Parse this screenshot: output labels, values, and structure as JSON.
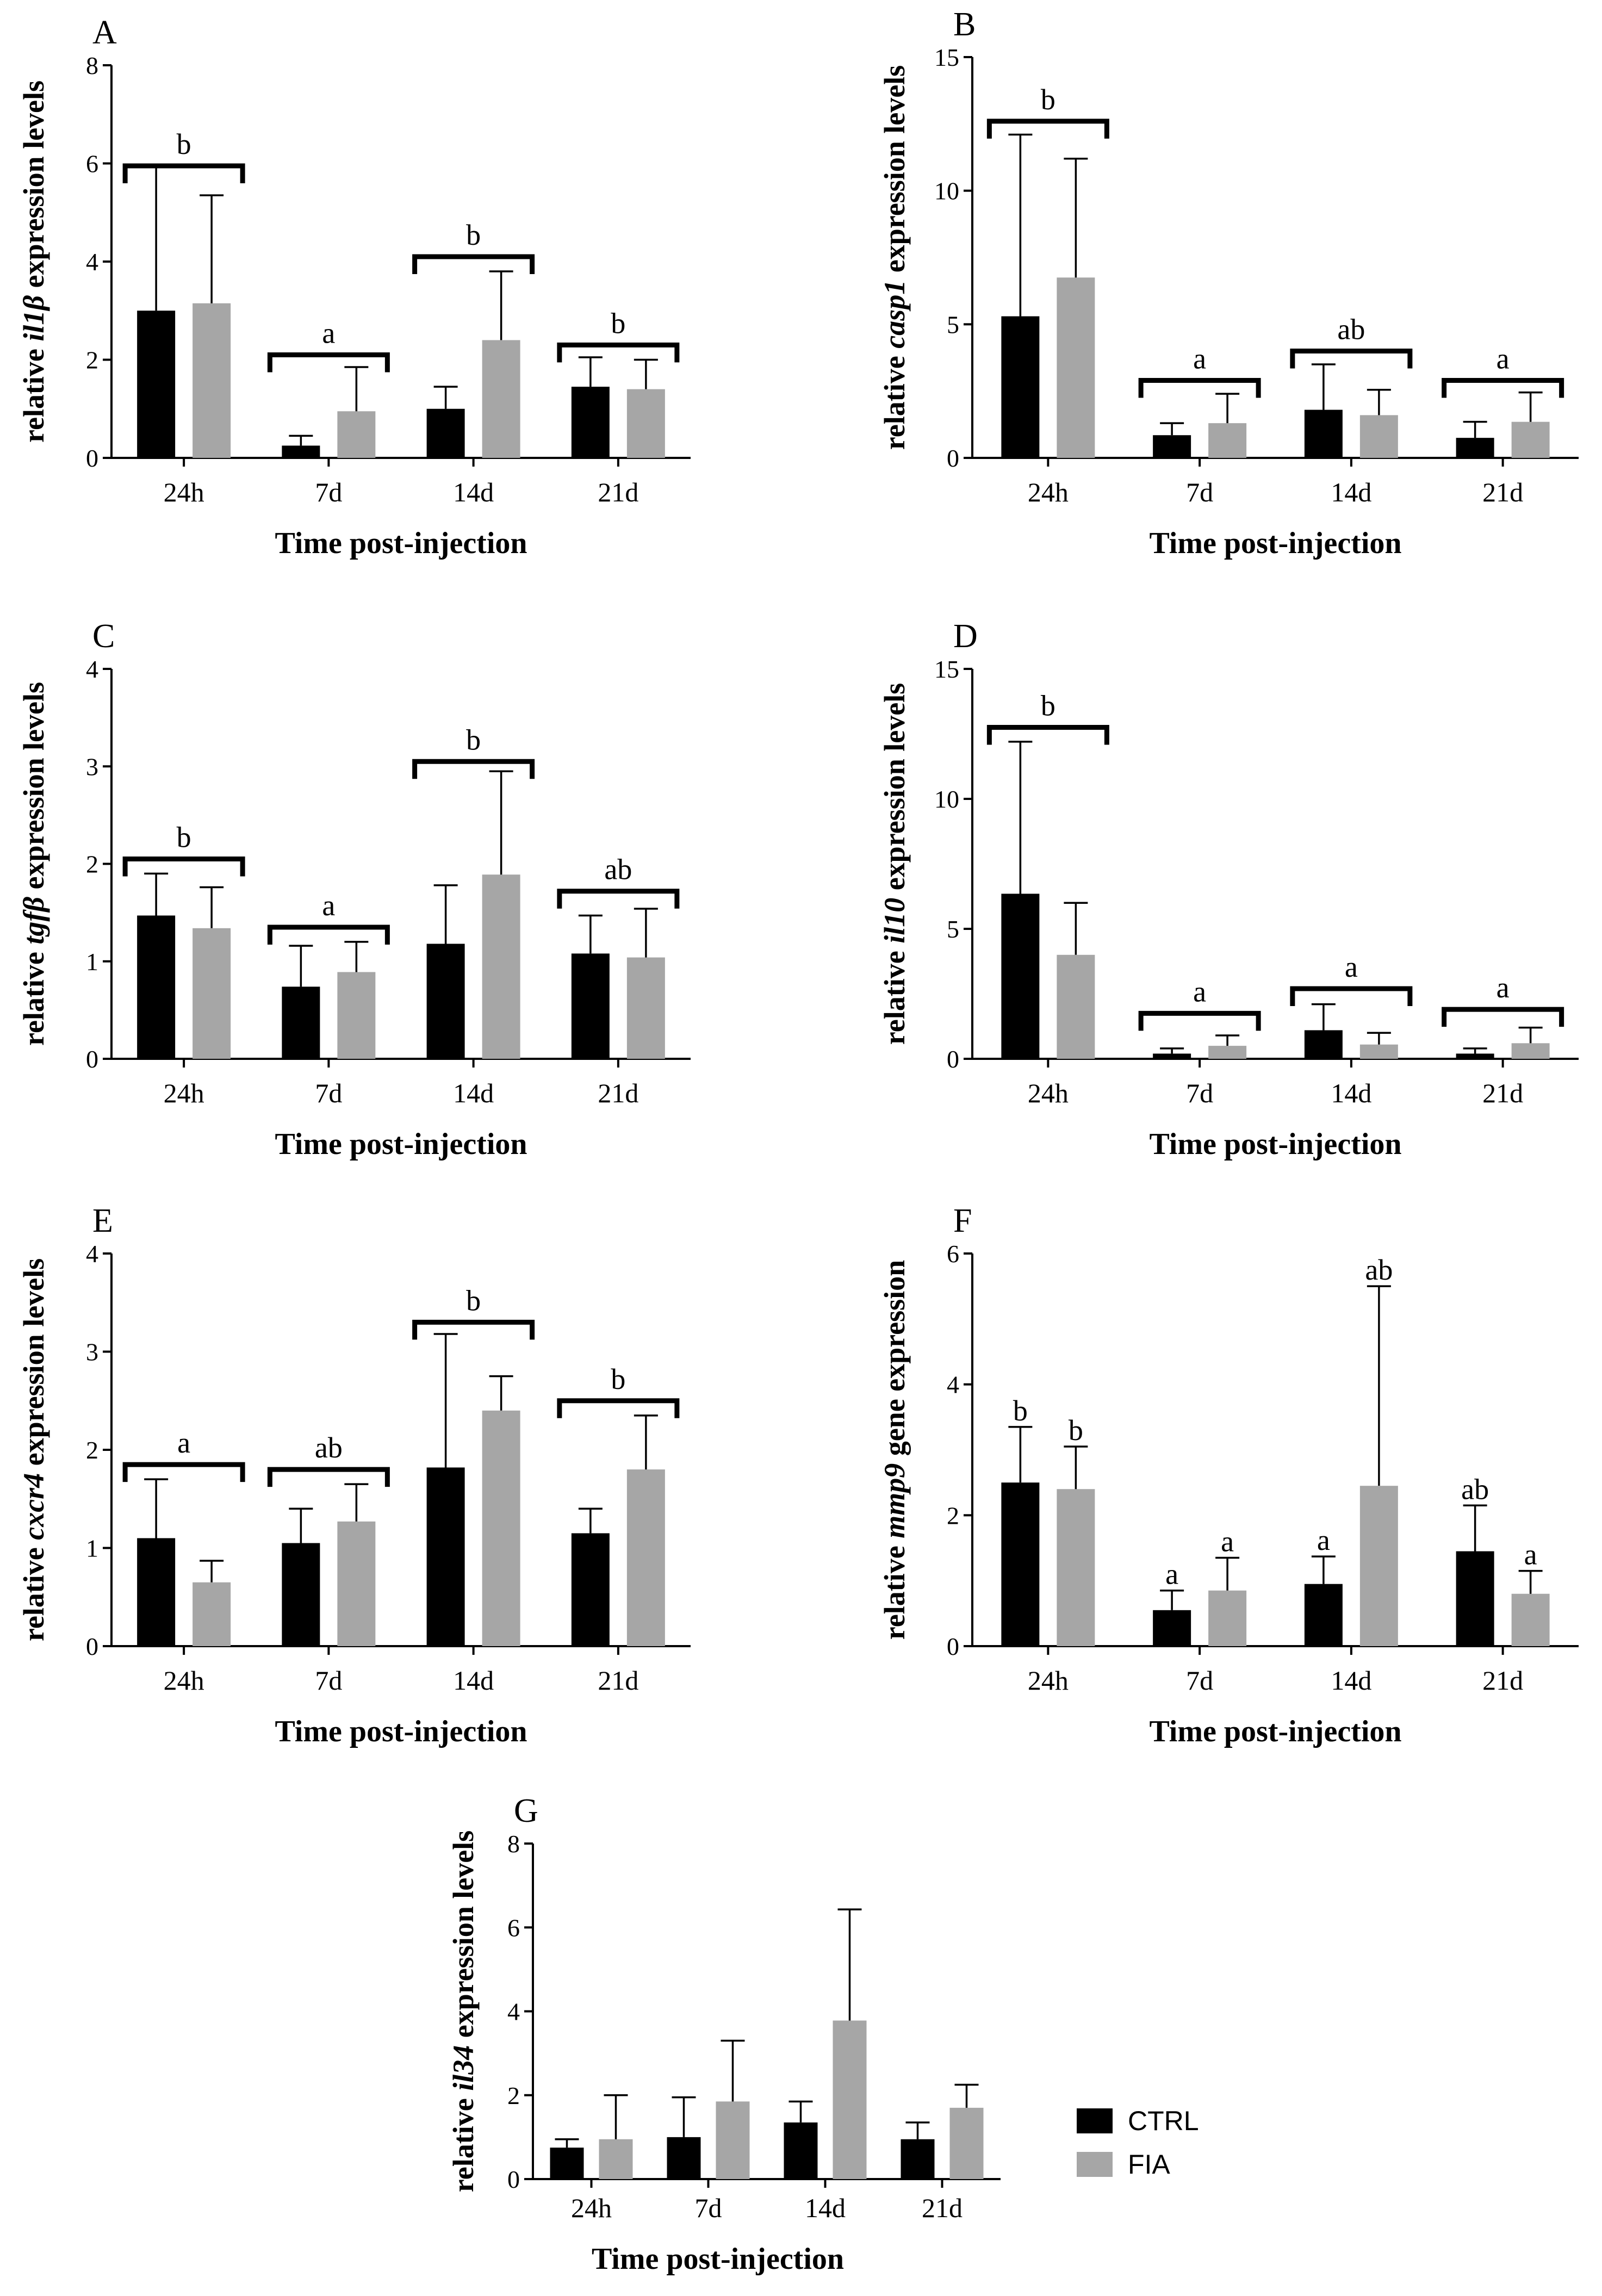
{
  "legend": {
    "ctrl": "CTRL",
    "fia": "FIA"
  },
  "colors": {
    "ctrl": "#000000",
    "fia": "#a6a6a6"
  },
  "chart_data": [
    {
      "panel": "A",
      "type": "bar",
      "ylabel_pre": "relative ",
      "ylabel_gene": "il1β",
      "ylabel_post": " expression levels",
      "xlabel": "Time post-injection",
      "categories": [
        "24h",
        "7d",
        "14d",
        "21d"
      ],
      "ylim": [
        0,
        8
      ],
      "yticks": [
        0,
        2,
        4,
        6,
        8
      ],
      "series": [
        {
          "name": "CTRL",
          "values": [
            3.0,
            0.25,
            1.0,
            1.45
          ],
          "errors": [
            2.95,
            0.2,
            0.45,
            0.6
          ]
        },
        {
          "name": "FIA",
          "values": [
            3.15,
            0.95,
            2.4,
            1.4
          ],
          "errors": [
            2.2,
            0.9,
            1.4,
            0.6
          ]
        }
      ],
      "groups": [
        {
          "label": "b",
          "bracket": 5.95
        },
        {
          "label": "a",
          "bracket": 2.1
        },
        {
          "label": "b",
          "bracket": 4.1
        },
        {
          "label": "b",
          "bracket": 2.3
        }
      ]
    },
    {
      "panel": "B",
      "type": "bar",
      "ylabel_pre": "relative ",
      "ylabel_gene": "casp1",
      "ylabel_post": " expression levels",
      "xlabel": "Time post-injection",
      "categories": [
        "24h",
        "7d",
        "14d",
        "21d"
      ],
      "ylim": [
        0,
        15
      ],
      "yticks": [
        0,
        5,
        10,
        15
      ],
      "series": [
        {
          "name": "CTRL",
          "values": [
            5.3,
            0.85,
            1.8,
            0.75
          ],
          "errors": [
            6.8,
            0.45,
            1.7,
            0.6
          ]
        },
        {
          "name": "FIA",
          "values": [
            6.75,
            1.3,
            1.6,
            1.35
          ],
          "errors": [
            4.45,
            1.1,
            0.95,
            1.1
          ]
        }
      ],
      "groups": [
        {
          "label": "b",
          "bracket": 12.6
        },
        {
          "label": "a",
          "bracket": 2.9
        },
        {
          "label": "ab",
          "bracket": 4.0
        },
        {
          "label": "a",
          "bracket": 2.9
        }
      ]
    },
    {
      "panel": "C",
      "type": "bar",
      "ylabel_pre": "relative ",
      "ylabel_gene": "tgfβ",
      "ylabel_post": " expression levels",
      "xlabel": "Time post-injection",
      "categories": [
        "24h",
        "7d",
        "14d",
        "21d"
      ],
      "ylim": [
        0,
        4
      ],
      "yticks": [
        0,
        1,
        2,
        3,
        4
      ],
      "series": [
        {
          "name": "CTRL",
          "values": [
            1.47,
            0.74,
            1.18,
            1.08
          ],
          "errors": [
            0.43,
            0.42,
            0.6,
            0.39
          ]
        },
        {
          "name": "FIA",
          "values": [
            1.34,
            0.89,
            1.89,
            1.04
          ],
          "errors": [
            0.42,
            0.31,
            1.06,
            0.5
          ]
        }
      ],
      "groups": [
        {
          "label": "b",
          "bracket": 2.05
        },
        {
          "label": "a",
          "bracket": 1.35
        },
        {
          "label": "b",
          "bracket": 3.05
        },
        {
          "label": "ab",
          "bracket": 1.72
        }
      ]
    },
    {
      "panel": "D",
      "type": "bar",
      "ylabel_pre": "relative ",
      "ylabel_gene": "il10",
      "ylabel_post": " expression levels",
      "xlabel": "Time post-injection",
      "categories": [
        "24h",
        "7d",
        "14d",
        "21d"
      ],
      "ylim": [
        0,
        15
      ],
      "yticks": [
        0,
        5,
        10,
        15
      ],
      "series": [
        {
          "name": "CTRL",
          "values": [
            6.35,
            0.2,
            1.1,
            0.2
          ],
          "errors": [
            5.85,
            0.2,
            1.0,
            0.2
          ]
        },
        {
          "name": "FIA",
          "values": [
            4.0,
            0.5,
            0.55,
            0.6
          ],
          "errors": [
            2.0,
            0.4,
            0.45,
            0.6
          ]
        }
      ],
      "groups": [
        {
          "label": "b",
          "bracket": 12.75
        },
        {
          "label": "a",
          "bracket": 1.75
        },
        {
          "label": "a",
          "bracket": 2.7
        },
        {
          "label": "a",
          "bracket": 1.9
        }
      ]
    },
    {
      "panel": "E",
      "type": "bar",
      "ylabel_pre": "relative ",
      "ylabel_gene": "cxcr4",
      "ylabel_post": " expression levels",
      "xlabel": "Time post-injection",
      "categories": [
        "24h",
        "7d",
        "14d",
        "21d"
      ],
      "ylim": [
        0,
        4
      ],
      "yticks": [
        0,
        1,
        2,
        3,
        4
      ],
      "series": [
        {
          "name": "CTRL",
          "values": [
            1.1,
            1.05,
            1.82,
            1.15
          ],
          "errors": [
            0.6,
            0.35,
            1.36,
            0.25
          ]
        },
        {
          "name": "FIA",
          "values": [
            0.65,
            1.27,
            2.4,
            1.8
          ],
          "errors": [
            0.22,
            0.38,
            0.35,
            0.55
          ]
        }
      ],
      "groups": [
        {
          "label": "a",
          "bracket": 1.85
        },
        {
          "label": "ab",
          "bracket": 1.8
        },
        {
          "label": "b",
          "bracket": 3.3
        },
        {
          "label": "b",
          "bracket": 2.5
        }
      ]
    },
    {
      "panel": "F",
      "type": "bar",
      "ylabel_pre": "relative ",
      "ylabel_gene": "mmp9",
      "ylabel_post": " gene expression",
      "xlabel": "Time post-injection",
      "categories": [
        "24h",
        "7d",
        "14d",
        "21d"
      ],
      "ylim": [
        0,
        6
      ],
      "yticks": [
        0,
        2,
        4,
        6
      ],
      "series": [
        {
          "name": "CTRL",
          "values": [
            2.5,
            0.55,
            0.95,
            1.45
          ],
          "errors": [
            0.85,
            0.3,
            0.42,
            0.7
          ]
        },
        {
          "name": "FIA",
          "values": [
            2.4,
            0.85,
            2.45,
            0.8
          ],
          "errors": [
            0.65,
            0.5,
            3.05,
            0.35
          ]
        }
      ],
      "bar_letters": [
        [
          "b",
          "b"
        ],
        [
          "a",
          "a"
        ],
        [
          "a",
          "ab"
        ],
        [
          "ab",
          "a"
        ]
      ]
    },
    {
      "panel": "G",
      "type": "bar",
      "ylabel_pre": "relative ",
      "ylabel_gene": "il34",
      "ylabel_post": " expression levels",
      "xlabel": "Time post-injection",
      "categories": [
        "24h",
        "7d",
        "14d",
        "21d"
      ],
      "ylim": [
        0,
        8
      ],
      "yticks": [
        0,
        2,
        4,
        6,
        8
      ],
      "series": [
        {
          "name": "CTRL",
          "values": [
            0.75,
            1.0,
            1.35,
            0.95
          ],
          "errors": [
            0.2,
            0.95,
            0.5,
            0.4
          ]
        },
        {
          "name": "FIA",
          "values": [
            0.95,
            1.85,
            3.78,
            1.7
          ],
          "errors": [
            1.05,
            1.45,
            2.65,
            0.55
          ]
        }
      ]
    }
  ]
}
